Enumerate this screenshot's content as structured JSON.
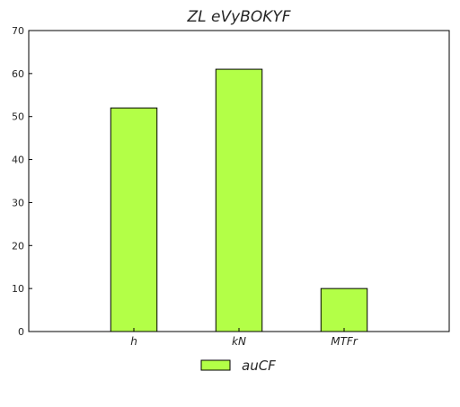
{
  "chart_data": {
    "type": "bar",
    "title": "ZL eVyBOKYF",
    "xlabel": "",
    "ylabel": "",
    "categories": [
      "h",
      "kN",
      "MTFr"
    ],
    "series": [
      {
        "name": "auCF",
        "values": [
          52,
          61,
          10
        ],
        "color": "#b3ff47"
      }
    ],
    "ylim": [
      0,
      70
    ],
    "yticks": [
      0,
      10,
      20,
      30,
      40,
      50,
      60,
      70
    ],
    "ytick_labels": [
      "0",
      "10",
      "20",
      "30",
      "40",
      "50",
      "60",
      "70"
    ],
    "grid": false,
    "legend_position": "bottom-center",
    "bar_edge_color": "#000000",
    "axis_color": "#000000"
  }
}
